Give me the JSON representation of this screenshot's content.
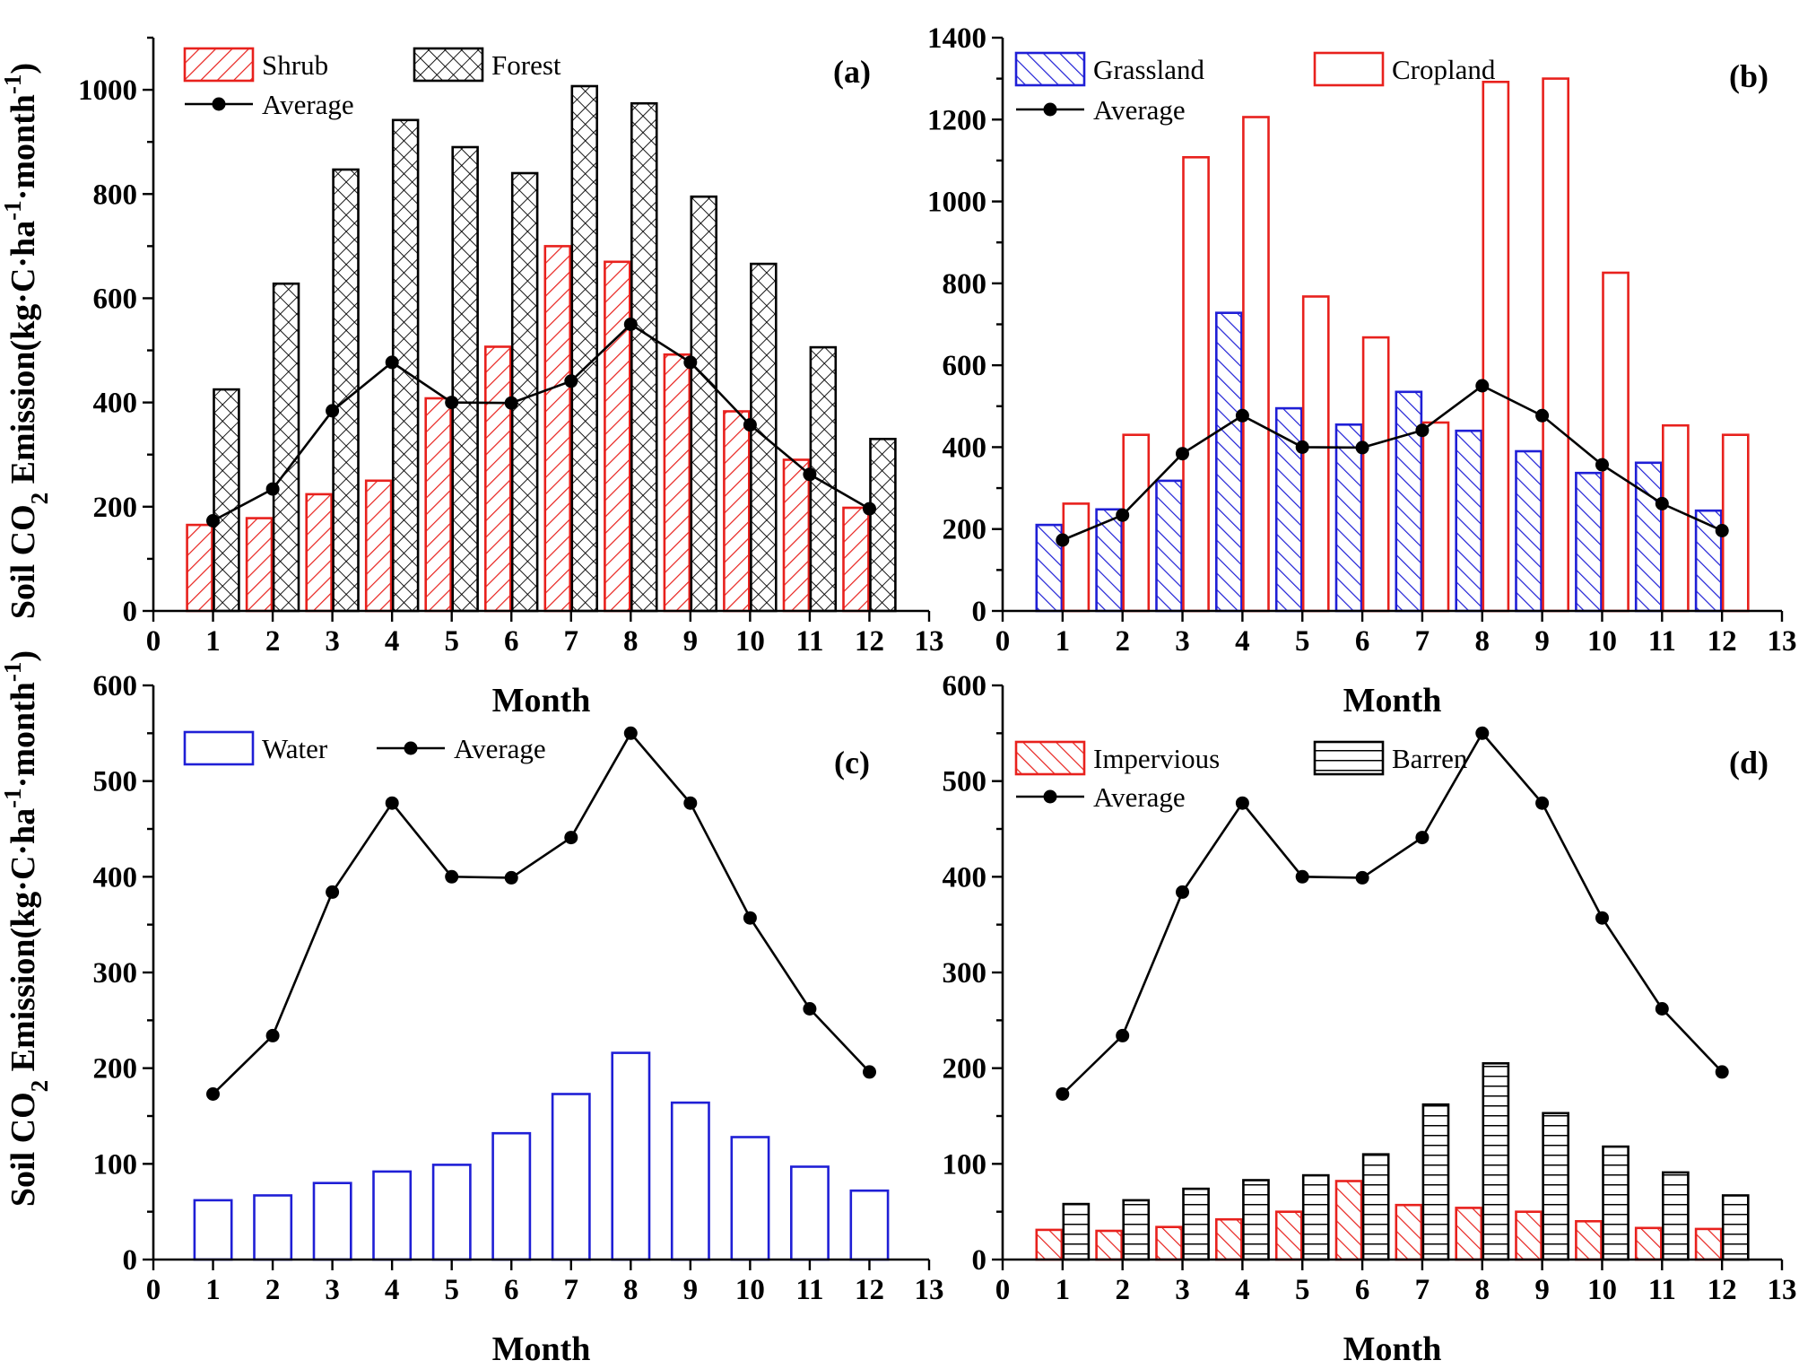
{
  "figure": {
    "ylabel_parts": {
      "a": "Soil CO",
      "sub2": "2",
      "b": " Emission(kg·C·ha",
      "sup1": "-1",
      "c": "·month",
      "sup2": "-1",
      "d": ")"
    }
  },
  "colors": {
    "red": "#e8211d",
    "black": "#000000",
    "blue": "#1f1fd6"
  },
  "chart_data": [
    {
      "id": "a",
      "type": "bar",
      "tag": "(a)",
      "xlabel": "Month",
      "xlim": [
        0,
        13
      ],
      "ylim": [
        0,
        1100
      ],
      "xticks": [
        "0",
        "1",
        "2",
        "3",
        "4",
        "5",
        "6",
        "7",
        "8",
        "9",
        "10",
        "11",
        "12",
        "13"
      ],
      "yticks": [
        "0",
        "200",
        "400",
        "600",
        "800",
        "1000"
      ],
      "categories": [
        1,
        2,
        3,
        4,
        5,
        6,
        7,
        8,
        9,
        10,
        11,
        12
      ],
      "series": [
        {
          "name": "Shrub",
          "style": "hatch-slash",
          "color": "#e8211d",
          "values": [
            165,
            178,
            224,
            250,
            408,
            507,
            700,
            670,
            492,
            383,
            290,
            198
          ]
        },
        {
          "name": "Forest",
          "style": "crosshatch",
          "color": "#000000",
          "values": [
            425,
            628,
            847,
            942,
            890,
            840,
            1007,
            974,
            795,
            666,
            506,
            330
          ]
        }
      ],
      "line": {
        "name": "Average",
        "values": [
          173,
          234,
          384,
          477,
          400,
          399,
          441,
          550,
          477,
          357,
          262,
          196
        ]
      }
    },
    {
      "id": "b",
      "type": "bar",
      "tag": "(b)",
      "xlabel": "Month",
      "xlim": [
        0,
        13
      ],
      "ylim": [
        0,
        1400
      ],
      "xticks": [
        "0",
        "1",
        "2",
        "3",
        "4",
        "5",
        "6",
        "7",
        "8",
        "9",
        "10",
        "11",
        "12",
        "13"
      ],
      "yticks": [
        "0",
        "200",
        "400",
        "600",
        "800",
        "1000",
        "1200",
        "1400"
      ],
      "categories": [
        1,
        2,
        3,
        4,
        5,
        6,
        7,
        8,
        9,
        10,
        11,
        12
      ],
      "series": [
        {
          "name": "Grassland",
          "style": "hatch-back",
          "color": "#1f1fd6",
          "values": [
            210,
            248,
            318,
            728,
            495,
            455,
            535,
            440,
            390,
            337,
            362,
            245
          ]
        },
        {
          "name": "Cropland",
          "style": "hollow",
          "color": "#e8211d",
          "values": [
            262,
            430,
            1108,
            1206,
            768,
            668,
            460,
            1292,
            1300,
            826,
            453,
            430
          ]
        }
      ],
      "line": {
        "name": "Average",
        "values": [
          173,
          234,
          384,
          477,
          400,
          399,
          441,
          550,
          477,
          357,
          262,
          196
        ]
      }
    },
    {
      "id": "c",
      "type": "bar",
      "tag": "(c)",
      "xlabel": "Month",
      "xlim": [
        0,
        13
      ],
      "ylim": [
        0,
        600
      ],
      "xticks": [
        "0",
        "1",
        "2",
        "3",
        "4",
        "5",
        "6",
        "7",
        "8",
        "9",
        "10",
        "11",
        "12",
        "13"
      ],
      "yticks": [
        "0",
        "100",
        "200",
        "300",
        "400",
        "500",
        "600"
      ],
      "categories": [
        1,
        2,
        3,
        4,
        5,
        6,
        7,
        8,
        9,
        10,
        11,
        12
      ],
      "series": [
        {
          "name": "Water",
          "style": "hollow",
          "color": "#1f1fd6",
          "values": [
            62,
            67,
            80,
            92,
            99,
            132,
            173,
            216,
            164,
            128,
            97,
            72
          ]
        }
      ],
      "line": {
        "name": "Average",
        "values": [
          173,
          234,
          384,
          477,
          400,
          399,
          441,
          550,
          477,
          357,
          262,
          196
        ]
      }
    },
    {
      "id": "d",
      "type": "bar",
      "tag": "(d)",
      "xlabel": "Month",
      "xlim": [
        0,
        13
      ],
      "ylim": [
        0,
        600
      ],
      "xticks": [
        "0",
        "1",
        "2",
        "3",
        "4",
        "5",
        "6",
        "7",
        "8",
        "9",
        "10",
        "11",
        "12",
        "13"
      ],
      "yticks": [
        "0",
        "100",
        "200",
        "300",
        "400",
        "500",
        "600"
      ],
      "categories": [
        1,
        2,
        3,
        4,
        5,
        6,
        7,
        8,
        9,
        10,
        11,
        12
      ],
      "series": [
        {
          "name": "Impervious",
          "style": "hatch-back",
          "color": "#e8211d",
          "values": [
            31,
            30,
            34,
            42,
            50,
            82,
            57,
            54,
            50,
            40,
            33,
            32
          ]
        },
        {
          "name": "Barren",
          "style": "hlines",
          "color": "#000000",
          "values": [
            58,
            62,
            74,
            83,
            88,
            110,
            162,
            205,
            153,
            118,
            91,
            67
          ]
        }
      ],
      "line": {
        "name": "Average",
        "values": [
          173,
          234,
          384,
          477,
          400,
          399,
          441,
          550,
          477,
          357,
          262,
          196
        ]
      }
    }
  ]
}
